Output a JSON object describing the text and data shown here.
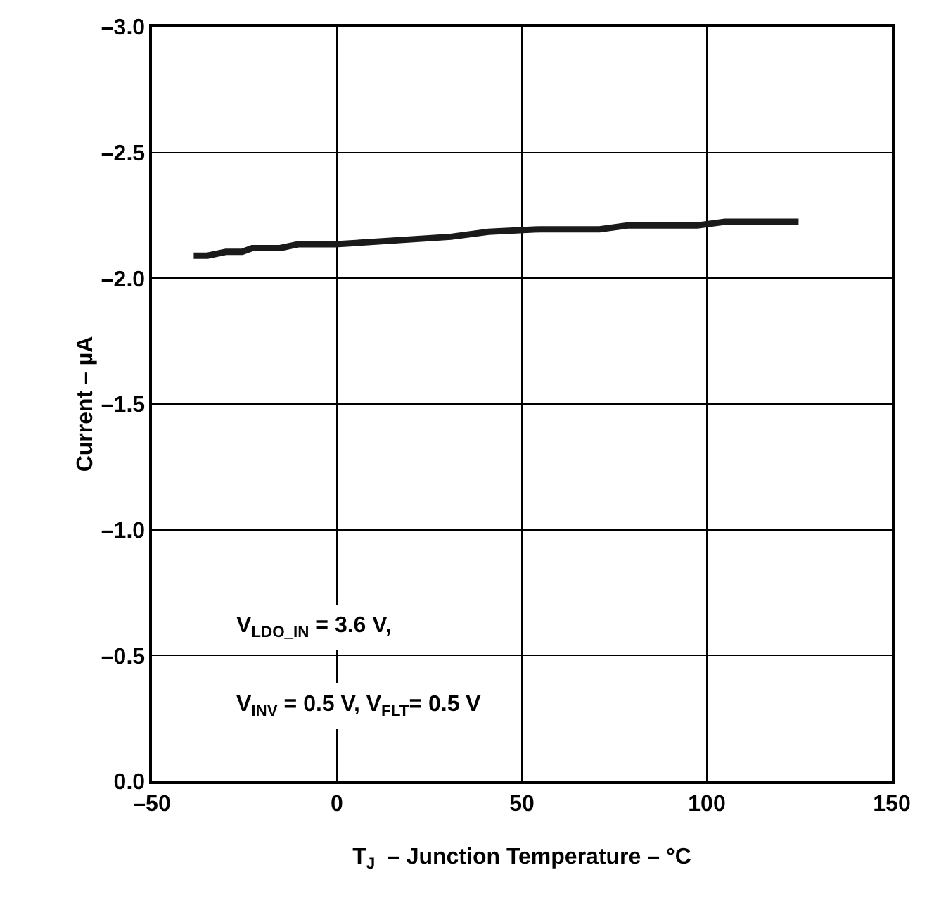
{
  "chart_data": {
    "type": "line",
    "xlabel": "T$_{J}$  – Junction Temperature – °C",
    "ylabel": "Current – µA",
    "x": [
      -38.7,
      -35,
      -30,
      -25.6,
      -22.9,
      -15.4,
      -10.5,
      -0.4,
      30.8,
      41,
      54.8,
      71,
      78.6,
      97.4,
      104.9,
      124.8
    ],
    "series": [
      {
        "color": "#1a1a1a",
        "values": [
          -2.09,
          -2.09,
          -2.105,
          -2.105,
          -2.12,
          -2.12,
          -2.135,
          -2.135,
          -2.165,
          -2.185,
          -2.195,
          -2.195,
          -2.21,
          -2.21,
          -2.225,
          -2.225
        ]
      }
    ],
    "xlim": [
      -50,
      150
    ],
    "ylim": [
      0,
      -3
    ],
    "xticks": [
      {
        "value": -50,
        "label": "–50"
      },
      0,
      50,
      100,
      150
    ],
    "yticks": [
      {
        "value": 0,
        "label": "0.0"
      },
      {
        "value": -0.5,
        "label": "–0.5"
      },
      {
        "value": -1,
        "label": "–1.0"
      },
      {
        "value": -1.5,
        "label": "–1.5"
      },
      {
        "value": -2,
        "label": "–2.0"
      },
      {
        "value": -2.5,
        "label": "–2.5"
      },
      {
        "value": -3,
        "label": "–3.0"
      }
    ],
    "grid": true,
    "legend": false,
    "marker": "none",
    "line_style": "solid",
    "annotations": [
      "V$_{LDO_IN}$ = 3.6 V,",
      "V$_{INV}$ = 0.5 V, V$_{FLT}$= 0.5 V"
    ]
  }
}
